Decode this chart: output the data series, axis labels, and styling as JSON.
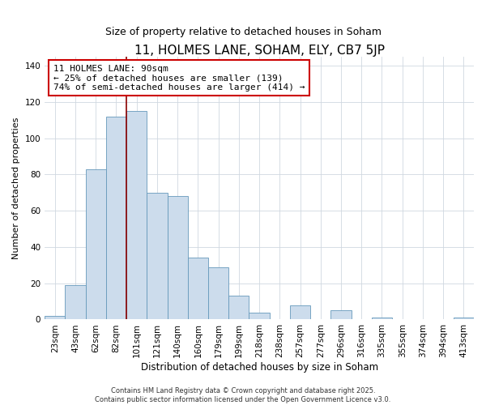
{
  "title": "11, HOLMES LANE, SOHAM, ELY, CB7 5JP",
  "subtitle": "Size of property relative to detached houses in Soham",
  "xlabel": "Distribution of detached houses by size in Soham",
  "ylabel": "Number of detached properties",
  "bar_labels": [
    "23sqm",
    "43sqm",
    "62sqm",
    "82sqm",
    "101sqm",
    "121sqm",
    "140sqm",
    "160sqm",
    "179sqm",
    "199sqm",
    "218sqm",
    "238sqm",
    "257sqm",
    "277sqm",
    "296sqm",
    "316sqm",
    "335sqm",
    "355sqm",
    "374sqm",
    "394sqm",
    "413sqm"
  ],
  "bar_values": [
    2,
    19,
    83,
    112,
    115,
    70,
    68,
    34,
    29,
    13,
    4,
    0,
    8,
    0,
    5,
    0,
    1,
    0,
    0,
    0,
    1
  ],
  "bar_color": "#ccdcec",
  "bar_edge_color": "#6699bb",
  "ylim": [
    0,
    145
  ],
  "yticks": [
    0,
    20,
    40,
    60,
    80,
    100,
    120,
    140
  ],
  "annotation_line1": "11 HOLMES LANE: 90sqm",
  "annotation_line2": "← 25% of detached houses are smaller (139)",
  "annotation_line3": "74% of semi-detached houses are larger (414) →",
  "vline_color": "#8b0000",
  "bg_color": "#ffffff",
  "footer1": "Contains HM Land Registry data © Crown copyright and database right 2025.",
  "footer2": "Contains public sector information licensed under the Open Government Licence v3.0.",
  "title_fontsize": 11,
  "subtitle_fontsize": 9,
  "xlabel_fontsize": 8.5,
  "ylabel_fontsize": 8,
  "tick_fontsize": 7.5,
  "annotation_fontsize": 8,
  "footer_fontsize": 6
}
